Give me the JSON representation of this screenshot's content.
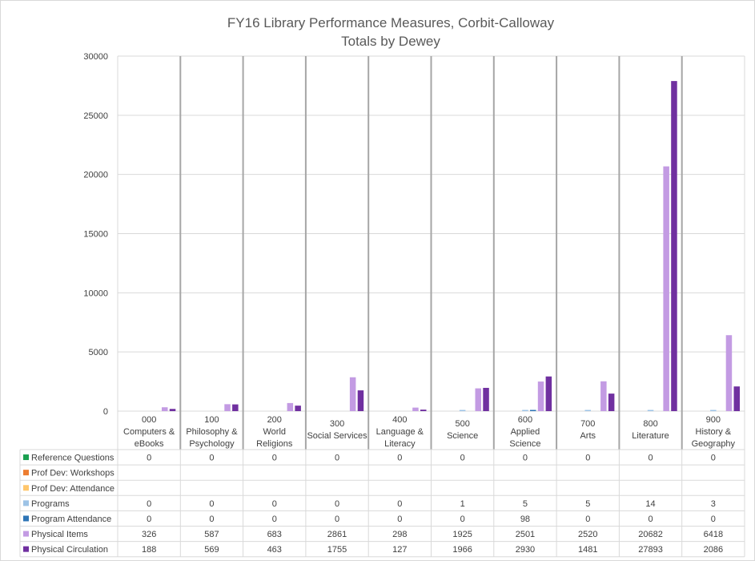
{
  "chart_data": {
    "type": "bar",
    "title": [
      "FY16 Library Performance Measures, Corbit-Calloway",
      "Totals by Dewey"
    ],
    "ylim": [
      0,
      30000
    ],
    "yticks": [
      0,
      5000,
      10000,
      15000,
      20000,
      25000,
      30000
    ],
    "grid": true,
    "legend_placement": "data-table-left",
    "categories": [
      [
        "000",
        "Computers &",
        "eBooks"
      ],
      [
        "100",
        "Philosophy &",
        "Psychology"
      ],
      [
        "200",
        "World",
        "Religions"
      ],
      [
        "300",
        "Social Services"
      ],
      [
        "400",
        "Language &",
        "Literacy"
      ],
      [
        "500",
        "Science"
      ],
      [
        "600",
        "Applied",
        "Science"
      ],
      [
        "700",
        "Arts"
      ],
      [
        "800",
        "Literature"
      ],
      [
        "900",
        "History &",
        "Geography"
      ]
    ],
    "series": [
      {
        "name": "Reference Questions",
        "color": "#1aa050",
        "values": [
          0,
          0,
          0,
          0,
          0,
          0,
          0,
          0,
          0,
          0
        ]
      },
      {
        "name": "Prof Dev: Workshops",
        "color": "#ed7d31",
        "values": [
          null,
          null,
          null,
          null,
          null,
          null,
          null,
          null,
          null,
          null
        ]
      },
      {
        "name": "Prof Dev: Attendance",
        "color": "#ffc66b",
        "values": [
          null,
          null,
          null,
          null,
          null,
          null,
          null,
          null,
          null,
          null
        ]
      },
      {
        "name": "Programs",
        "color": "#9dc3e6",
        "values": [
          0,
          0,
          0,
          0,
          0,
          1,
          5,
          5,
          14,
          3
        ]
      },
      {
        "name": "Program Attendance",
        "color": "#2e75b6",
        "values": [
          0,
          0,
          0,
          0,
          0,
          0,
          98,
          0,
          0,
          0
        ]
      },
      {
        "name": "Physical Items",
        "color": "#c39be3",
        "values": [
          326,
          587,
          683,
          2861,
          298,
          1925,
          2501,
          2520,
          20682,
          6418
        ]
      },
      {
        "name": "Physical Circulation",
        "color": "#7030a0",
        "values": [
          188,
          569,
          463,
          1755,
          127,
          1966,
          2930,
          1481,
          27893,
          2086
        ]
      }
    ]
  }
}
